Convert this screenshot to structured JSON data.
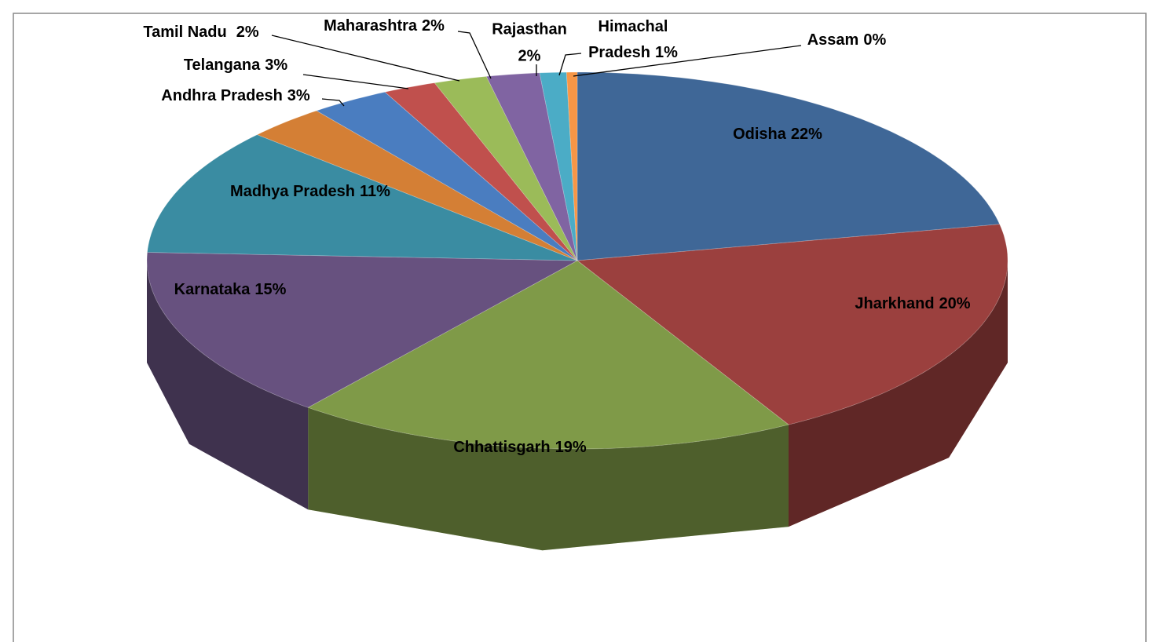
{
  "chart_data": {
    "type": "pie3d",
    "categories": [
      "Odisha",
      "Jharkhand",
      "Chhattisgarh",
      "Karnataka",
      "Madhya Pradesh",
      "Andhra Pradesh",
      "Telangana",
      "Tamil Nadu",
      "Maharashtra",
      "Rajasthan",
      "Himachal Pradesh",
      "Assam"
    ],
    "values": [
      22,
      20,
      19,
      15,
      11,
      3,
      3,
      2,
      2,
      2,
      1,
      0.4
    ],
    "value_labels": [
      "22%",
      "20%",
      "19%",
      "15%",
      "11%",
      "3%",
      "3%",
      "2%",
      "2%",
      "2%",
      "1%",
      "0%"
    ],
    "colors": [
      "#3f6797",
      "#9b403e",
      "#7f9a48",
      "#67517f",
      "#3a8ca2",
      "#d47f35",
      "#4a7dc0",
      "#c0504d",
      "#9bbb59",
      "#8064a2",
      "#4bacc6",
      "#f79646"
    ]
  }
}
